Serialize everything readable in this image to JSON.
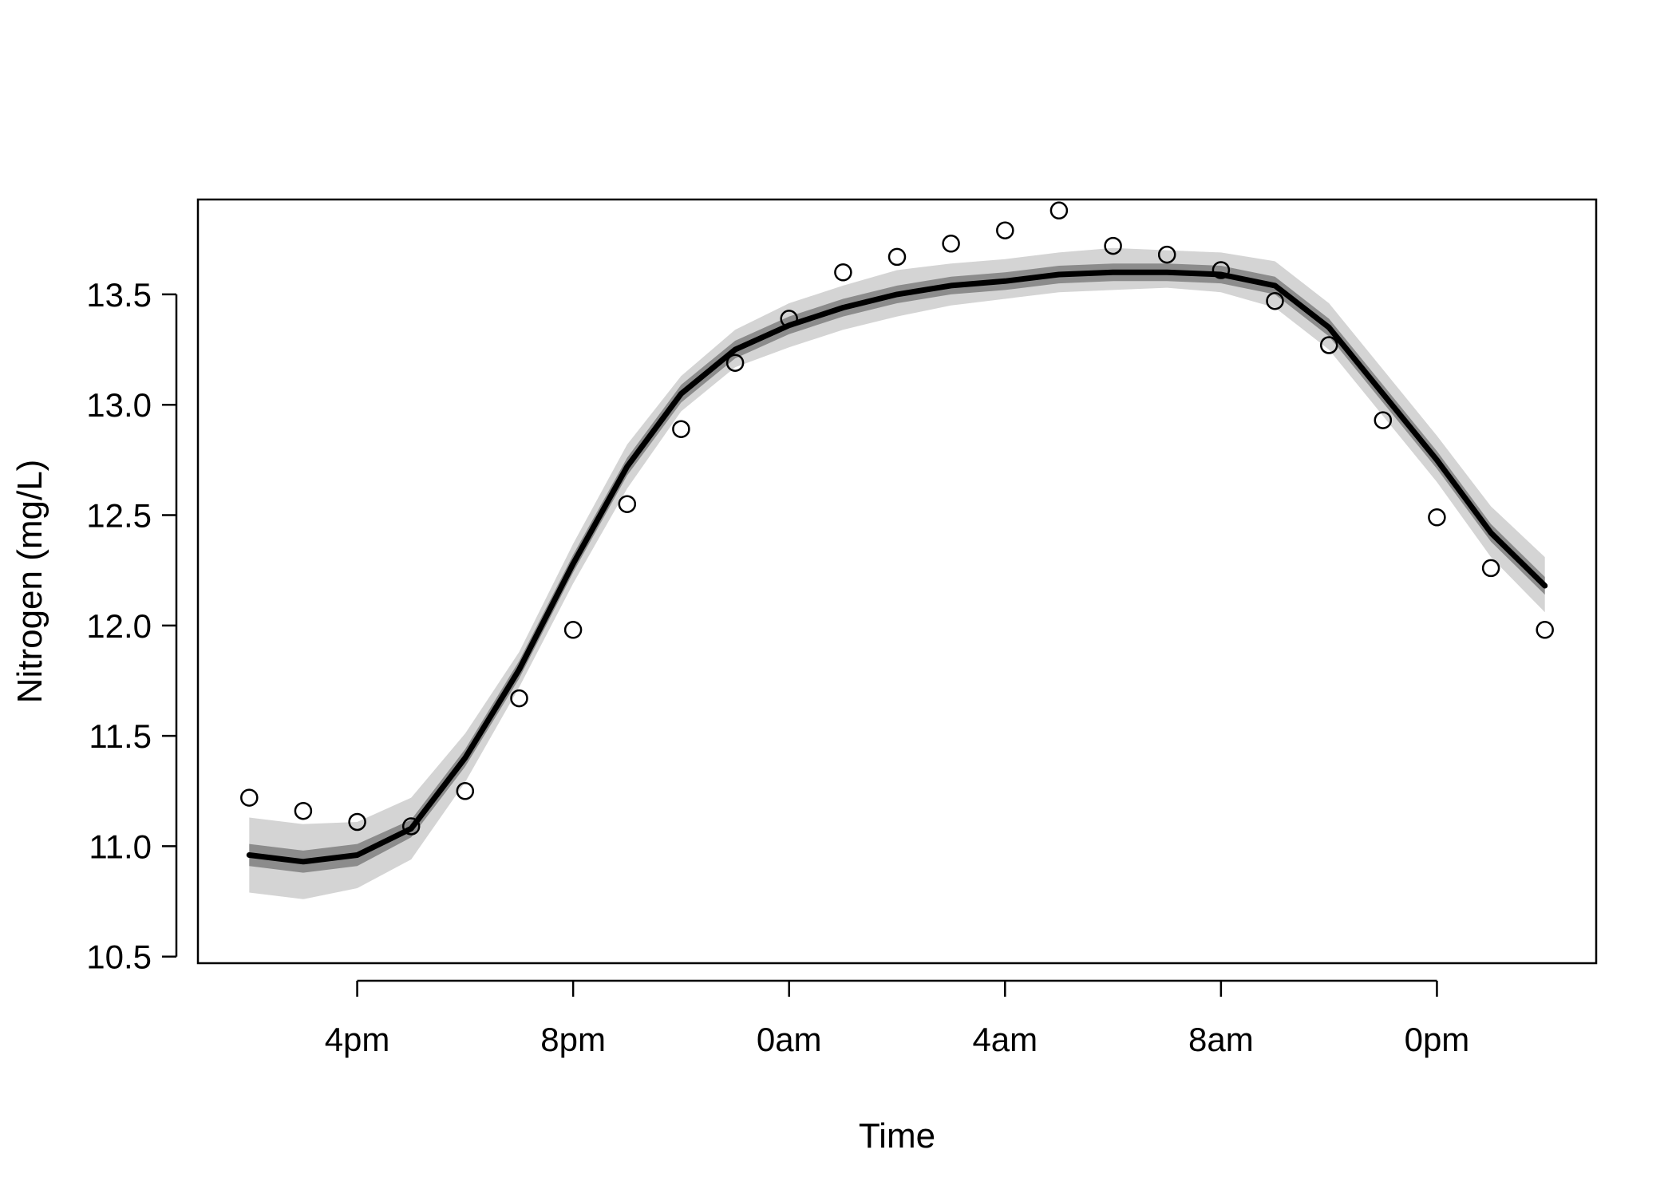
{
  "chart_data": {
    "type": "line",
    "title": "",
    "xlabel": "Time",
    "ylabel": "Nitrogen  (mg/L)",
    "x_ticks": [
      "4pm",
      "8pm",
      "0am",
      "4am",
      "8am",
      "0pm"
    ],
    "x_tick_hours": [
      16,
      20,
      24,
      28,
      32,
      36
    ],
    "y_ticks": [
      "10.5",
      "11.0",
      "11.5",
      "12.0",
      "12.5",
      "13.0",
      "13.5"
    ],
    "ylim": [
      10.47,
      13.93
    ],
    "xlim": [
      13.05,
      38.95
    ],
    "grid": false,
    "legend": "none",
    "x_hours": [
      14,
      15,
      16,
      17,
      18,
      19,
      20,
      21,
      22,
      23,
      24,
      25,
      26,
      27,
      28,
      29,
      30,
      31,
      32,
      33,
      34,
      35,
      36,
      37,
      38
    ],
    "series": [
      {
        "kind": "points",
        "marker": "open-circle",
        "values": [
          11.22,
          11.16,
          11.11,
          11.09,
          11.25,
          11.67,
          11.98,
          12.55,
          12.89,
          13.19,
          13.39,
          13.6,
          13.67,
          13.73,
          13.79,
          13.88,
          13.72,
          13.68,
          13.61,
          13.47,
          13.27,
          12.93,
          12.49,
          12.26,
          11.98
        ]
      },
      {
        "kind": "line",
        "values": [
          10.96,
          10.93,
          10.96,
          11.08,
          11.4,
          11.8,
          12.28,
          12.72,
          13.05,
          13.25,
          13.36,
          13.44,
          13.5,
          13.54,
          13.56,
          13.59,
          13.6,
          13.6,
          13.59,
          13.54,
          13.35,
          13.05,
          12.75,
          12.42,
          12.18
        ]
      },
      {
        "kind": "band-inner",
        "lower": [
          10.91,
          10.88,
          10.91,
          11.04,
          11.36,
          11.76,
          12.24,
          12.68,
          13.01,
          13.21,
          13.32,
          13.4,
          13.46,
          13.5,
          13.52,
          13.55,
          13.56,
          13.56,
          13.55,
          13.5,
          13.31,
          13.01,
          12.71,
          12.38,
          12.14
        ],
        "upper": [
          11.01,
          10.98,
          11.01,
          11.12,
          11.44,
          11.84,
          12.32,
          12.76,
          13.09,
          13.29,
          13.4,
          13.48,
          13.54,
          13.58,
          13.6,
          13.63,
          13.64,
          13.64,
          13.63,
          13.58,
          13.39,
          13.09,
          12.79,
          12.46,
          12.22
        ]
      },
      {
        "kind": "band-outer",
        "lower": [
          10.79,
          10.76,
          10.81,
          10.94,
          11.29,
          11.72,
          12.19,
          12.62,
          12.97,
          13.17,
          13.26,
          13.34,
          13.4,
          13.45,
          13.48,
          13.51,
          13.52,
          13.53,
          13.51,
          13.44,
          13.25,
          12.95,
          12.65,
          12.31,
          12.06
        ],
        "upper": [
          11.13,
          11.1,
          11.11,
          11.22,
          11.51,
          11.88,
          12.37,
          12.82,
          13.13,
          13.34,
          13.46,
          13.54,
          13.61,
          13.64,
          13.66,
          13.69,
          13.71,
          13.7,
          13.69,
          13.65,
          13.46,
          13.16,
          12.86,
          12.54,
          12.31
        ]
      }
    ],
    "colors": {
      "band_outer": "#d4d4d4",
      "band_inner": "#8c8c8c",
      "line": "#000000",
      "points": "#000000",
      "frame": "#000000"
    }
  }
}
